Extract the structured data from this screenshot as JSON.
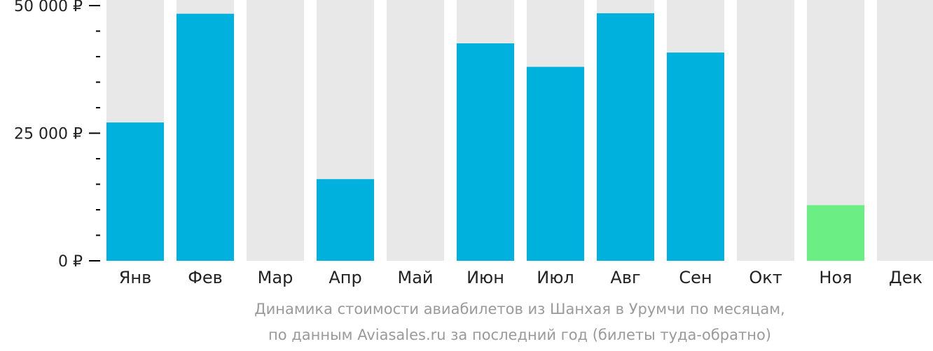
{
  "chart_data": {
    "type": "bar",
    "categories": [
      "Янв",
      "Фев",
      "Мар",
      "Апр",
      "Май",
      "Июн",
      "Июл",
      "Авг",
      "Сен",
      "Окт",
      "Ноя",
      "Дек"
    ],
    "values": [
      27100,
      48400,
      null,
      16000,
      null,
      42600,
      38000,
      48500,
      40800,
      null,
      10900,
      null
    ],
    "ylim": [
      0,
      50000
    ],
    "yticks": [
      {
        "value": 0,
        "label": "0 ₽"
      },
      {
        "value": 25000,
        "label": "25 000 ₽"
      },
      {
        "value": 50000,
        "label": "50 000 ₽"
      }
    ],
    "minor_tick_step": 5000,
    "highlight_index": 10,
    "colors": {
      "bar": "#00b0dd",
      "highlight": "#6bef84",
      "background_bar": "#e8e8e8",
      "axis": "#000000",
      "caption": "#9a9a9a"
    },
    "caption_line1": "Динамика стоимости авиабилетов из Шанхая в Урумчи по месяцам,",
    "caption_line2": "по данным Aviasales.ru за последний год (билеты туда-обратно)"
  }
}
